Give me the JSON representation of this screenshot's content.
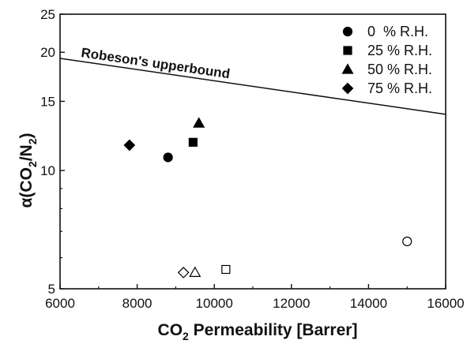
{
  "chart_data": {
    "type": "scatter",
    "xlabel_main": "CO",
    "xlabel_sub": "2",
    "xlabel_rest": " Permeability [Barrer]",
    "ylabel_parts": [
      "α(CO",
      "2",
      "/N",
      "2",
      ")"
    ],
    "xlim": [
      6000,
      16000
    ],
    "ylim": [
      5,
      25
    ],
    "yscale": "log",
    "x_ticks": [
      6000,
      8000,
      10000,
      12000,
      14000,
      16000
    ],
    "x_tick_labels": [
      "6000",
      "8000",
      "10000",
      "12000",
      "14000",
      "16000"
    ],
    "y_ticks": [
      5,
      10,
      15,
      20,
      25
    ],
    "y_tick_labels": [
      "5",
      "10",
      "15",
      "20",
      "25"
    ],
    "legend_position": "top-right",
    "series": [
      {
        "name": "0  % R.H.",
        "marker": "circle",
        "filled": [
          {
            "x": 8800,
            "y": 10.8
          }
        ],
        "open": [
          {
            "x": 15000,
            "y": 6.6
          }
        ]
      },
      {
        "name": "25 % R.H.",
        "marker": "square",
        "filled": [
          {
            "x": 9450,
            "y": 11.8
          }
        ],
        "open": [
          {
            "x": 10300,
            "y": 5.6
          }
        ]
      },
      {
        "name": "50 % R.H.",
        "marker": "triangle",
        "filled": [
          {
            "x": 9600,
            "y": 13.2
          }
        ],
        "open": [
          {
            "x": 9500,
            "y": 5.5
          }
        ]
      },
      {
        "name": "75 % R.H.",
        "marker": "diamond",
        "filled": [
          {
            "x": 7800,
            "y": 11.6
          }
        ],
        "open": [
          {
            "x": 9200,
            "y": 5.5
          }
        ]
      }
    ],
    "upper_bound": {
      "label": "Robeson's upperbound",
      "points": [
        {
          "x": 6000,
          "y": 19.3
        },
        {
          "x": 16000,
          "y": 13.9
        }
      ]
    }
  }
}
